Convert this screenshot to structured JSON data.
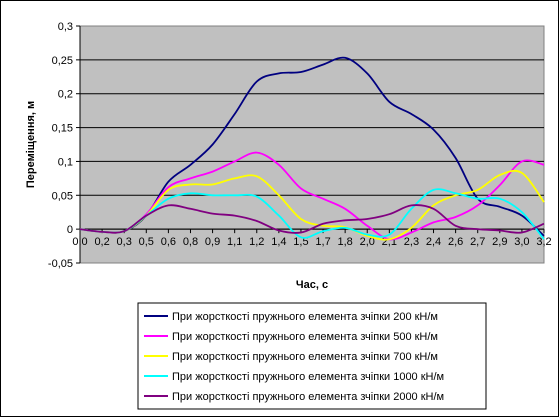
{
  "chart_data": {
    "type": "line",
    "xlabel": "Час, с",
    "ylabel": "Переміщення, м",
    "ylim": [
      -0.05,
      0.3
    ],
    "yticks": [
      "0,3",
      "0,25",
      "0,2",
      "0,15",
      "0,1",
      "0,05",
      "0",
      "-0,05"
    ],
    "ytick_values": [
      0.3,
      0.25,
      0.2,
      0.15,
      0.1,
      0.05,
      0,
      -0.05
    ],
    "xtick_labels": [
      "0,0",
      "0,2",
      "0,3",
      "0,5",
      "0,6",
      "0,8",
      "0,9",
      "1,1",
      "1,2",
      "1,4",
      "1,5",
      "1,7",
      "1,8",
      "2,0",
      "2,1",
      "2,3",
      "2,4",
      "2,6",
      "2,7",
      "2,9",
      "3,0",
      "3,2"
    ],
    "x": [
      0.0,
      0.15,
      0.3,
      0.45,
      0.6,
      0.75,
      0.9,
      1.05,
      1.2,
      1.35,
      1.5,
      1.65,
      1.8,
      1.95,
      2.1,
      2.25,
      2.4,
      2.55,
      2.7,
      2.85,
      3.0,
      3.15
    ],
    "grid": true,
    "plot_background": "#c0c0c0",
    "legend_position": "bottom",
    "series": [
      {
        "name": "При жорсткості пружнього елемента зчіпки 200 кН/м",
        "color": "#000080",
        "values": [
          0.0,
          -0.004,
          -0.003,
          0.02,
          0.07,
          0.095,
          0.125,
          0.17,
          0.218,
          0.23,
          0.232,
          0.243,
          0.253,
          0.23,
          0.188,
          0.17,
          0.147,
          0.105,
          0.045,
          0.033,
          0.02,
          -0.01
        ]
      },
      {
        "name": "При жорсткості пружнього елемента зчіпки 500 кН/м",
        "color": "#ff00ff",
        "values": [
          0.0,
          -0.004,
          -0.003,
          0.022,
          0.062,
          0.075,
          0.085,
          0.1,
          0.113,
          0.095,
          0.06,
          0.045,
          0.03,
          0.005,
          -0.015,
          -0.005,
          0.01,
          0.018,
          0.035,
          0.065,
          0.1,
          0.095
        ]
      },
      {
        "name": "При жорсткості пружнього елемента зчіпки 700 кН/м",
        "color": "#ffff00",
        "values": [
          0.0,
          -0.004,
          -0.003,
          0.02,
          0.058,
          0.066,
          0.066,
          0.075,
          0.078,
          0.05,
          0.015,
          0.005,
          0.003,
          -0.01,
          -0.015,
          0.002,
          0.035,
          0.05,
          0.058,
          0.08,
          0.083,
          0.04
        ]
      },
      {
        "name": "При жорсткості пружнього елемента зчіпки 1000 кН/м",
        "color": "#00ffff",
        "values": [
          0.0,
          -0.004,
          -0.003,
          0.02,
          0.045,
          0.053,
          0.05,
          0.05,
          0.048,
          0.02,
          -0.012,
          -0.003,
          0.002,
          -0.008,
          -0.008,
          0.03,
          0.058,
          0.053,
          0.045,
          0.045,
          0.025,
          -0.015
        ]
      },
      {
        "name": "При жорсткості пружнього елемента зчіпки 2000 кН/м",
        "color": "#800080",
        "values": [
          0.0,
          -0.004,
          -0.003,
          0.02,
          0.035,
          0.03,
          0.023,
          0.02,
          0.012,
          -0.002,
          -0.005,
          0.008,
          0.013,
          0.015,
          0.022,
          0.035,
          0.03,
          0.005,
          0.0,
          -0.002,
          -0.005,
          0.008
        ]
      }
    ]
  }
}
